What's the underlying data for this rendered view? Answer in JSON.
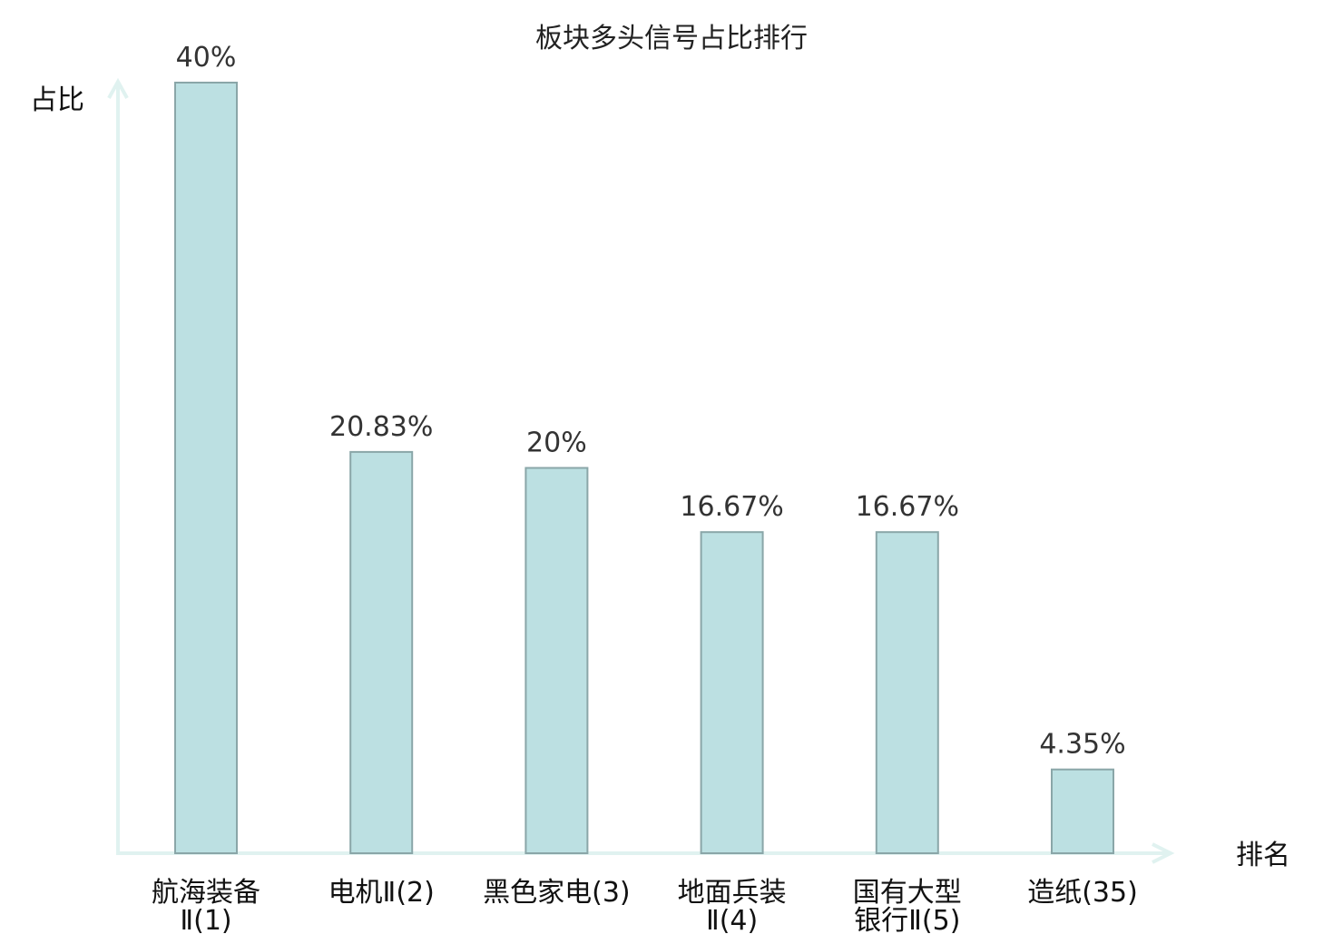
{
  "chart_data": {
    "type": "bar",
    "title": "板块多头信号占比排行",
    "ylabel": "占比",
    "xlabel": "排名",
    "ylim": [
      0,
      40
    ],
    "grid": false,
    "categories": [
      [
        "航海装备",
        "Ⅱ(1)"
      ],
      [
        "电机Ⅱ(2)"
      ],
      [
        "黑色家电(3)"
      ],
      [
        "地面兵装",
        "Ⅱ(4)"
      ],
      [
        "国有大型",
        "银行Ⅱ(5)"
      ],
      [
        "造纸(35)"
      ]
    ],
    "values": [
      40,
      20.83,
      20,
      16.67,
      16.67,
      4.35
    ],
    "value_labels": [
      "40%",
      "20.83%",
      "20%",
      "16.67%",
      "16.67%",
      "4.35%"
    ],
    "highlight_index": 5,
    "colors": {
      "bar_fill": "#bce0e2",
      "bar_stroke": "#8aa6a8",
      "axis": "#e0f2f0",
      "text": "#111111",
      "value_text": "#333333",
      "highlight_text": "#e02020"
    }
  }
}
